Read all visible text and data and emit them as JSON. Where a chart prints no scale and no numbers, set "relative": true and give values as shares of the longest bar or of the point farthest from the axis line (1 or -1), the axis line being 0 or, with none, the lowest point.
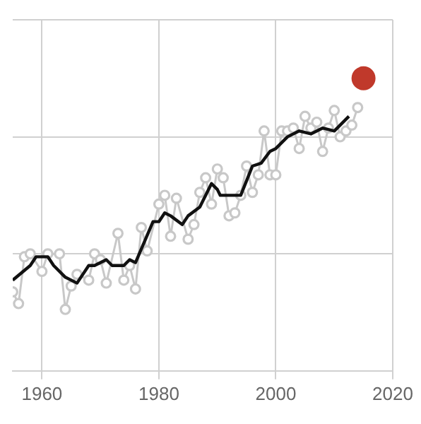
{
  "chart_data": {
    "type": "line",
    "relative": true,
    "xlim": [
      1955,
      2020
    ],
    "xticks": [
      1960,
      1980,
      2000,
      2020
    ],
    "grid": true,
    "tick_labels": "x",
    "series": [
      {
        "type": "line",
        "color": "#c8c8c8",
        "marker": "circle",
        "x": [
          1955,
          1956,
          1957,
          1958,
          1960,
          1961,
          1963,
          1964,
          1965,
          1966,
          1968,
          1969,
          1970,
          1971,
          1973,
          1974,
          1975,
          1976,
          1977,
          1978,
          1980,
          1981,
          1982,
          1983,
          1985,
          1986,
          1987,
          1988,
          1989,
          1990,
          1991,
          1992,
          1993,
          1994,
          1995,
          1996,
          1997,
          1998,
          1999,
          2000,
          2001,
          2002,
          2003,
          2004,
          2005,
          2006,
          2007,
          2008,
          2009,
          2010,
          2011,
          2012,
          2013,
          2014
        ],
        "values": [
          0.27,
          0.23,
          0.39,
          0.4,
          0.34,
          0.4,
          0.4,
          0.21,
          0.29,
          0.33,
          0.31,
          0.4,
          0.38,
          0.3,
          0.47,
          0.31,
          0.36,
          0.28,
          0.49,
          0.41,
          0.57,
          0.6,
          0.46,
          0.59,
          0.45,
          0.5,
          0.61,
          0.66,
          0.57,
          0.69,
          0.66,
          0.53,
          0.54,
          0.6,
          0.7,
          0.61,
          0.67,
          0.82,
          0.67,
          0.67,
          0.82,
          0.82,
          0.83,
          0.76,
          0.87,
          0.83,
          0.85,
          0.75,
          0.83,
          0.89,
          0.8,
          0.82,
          0.84,
          0.9
        ]
      },
      {
        "type": "line",
        "color": "#111111",
        "marker": "none",
        "x": [
          1955,
          1958,
          1959,
          1961,
          1962,
          1964,
          1966,
          1968,
          1969,
          1971,
          1972,
          1974,
          1975,
          1976,
          1977.5,
          1979,
          1980,
          1981,
          1982,
          1984,
          1985,
          1987,
          1989,
          1990,
          1990.5,
          1994,
          1996,
          1997.5,
          1999,
          2000,
          2002,
          2004,
          2006,
          2008,
          2010,
          2012.5
        ],
        "values": [
          0.31,
          0.36,
          0.39,
          0.39,
          0.36,
          0.32,
          0.3,
          0.36,
          0.36,
          0.38,
          0.36,
          0.36,
          0.38,
          0.37,
          0.44,
          0.51,
          0.51,
          0.54,
          0.53,
          0.5,
          0.53,
          0.56,
          0.64,
          0.62,
          0.6,
          0.6,
          0.7,
          0.71,
          0.75,
          0.76,
          0.8,
          0.82,
          0.81,
          0.83,
          0.82,
          0.87
        ]
      },
      {
        "type": "scatter",
        "color": "#c0392b",
        "marker": "circle",
        "x": [
          2015
        ],
        "values": [
          1
        ]
      }
    ]
  }
}
